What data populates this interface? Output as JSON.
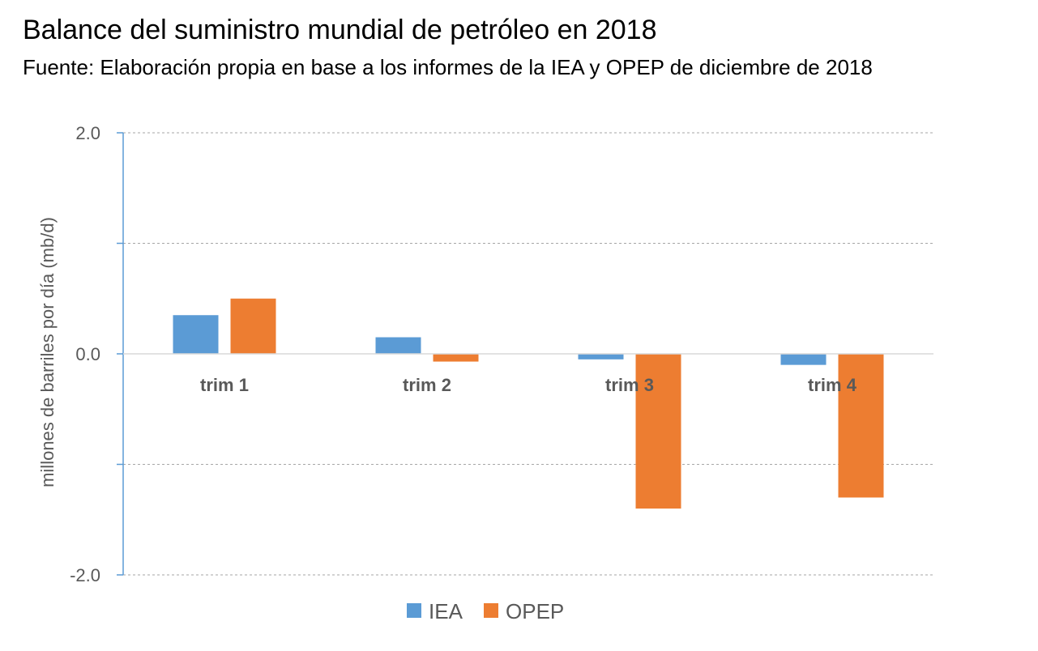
{
  "chart_data": {
    "type": "bar",
    "title": "Balance del suministro mundial de petróleo en 2018",
    "subtitle": "Fuente: Elaboración propia en base a los informes de la IEA  y OPEP de diciembre de 2018",
    "ylabel": "millones de barriles por día (mb/d)",
    "xlabel": "",
    "categories": [
      "trim 1",
      "trim 2",
      "trim 3",
      "trim 4"
    ],
    "series": [
      {
        "name": "IEA",
        "color": "#5B9BD5",
        "values": [
          0.35,
          0.15,
          -0.05,
          -0.1
        ]
      },
      {
        "name": "OPEP",
        "color": "#ED7D31",
        "values": [
          0.5,
          -0.07,
          -1.4,
          -1.3
        ]
      }
    ],
    "ylim": [
      -2.0,
      2.0
    ],
    "y_tick_labels": [
      "2.0",
      "0.0",
      "-2.0"
    ],
    "y_tick_values": [
      2.0,
      0.0,
      -2.0
    ],
    "gridlines": [
      2.0,
      1.0,
      -1.0,
      -2.0
    ],
    "grid": true,
    "legend_position": "bottom"
  }
}
